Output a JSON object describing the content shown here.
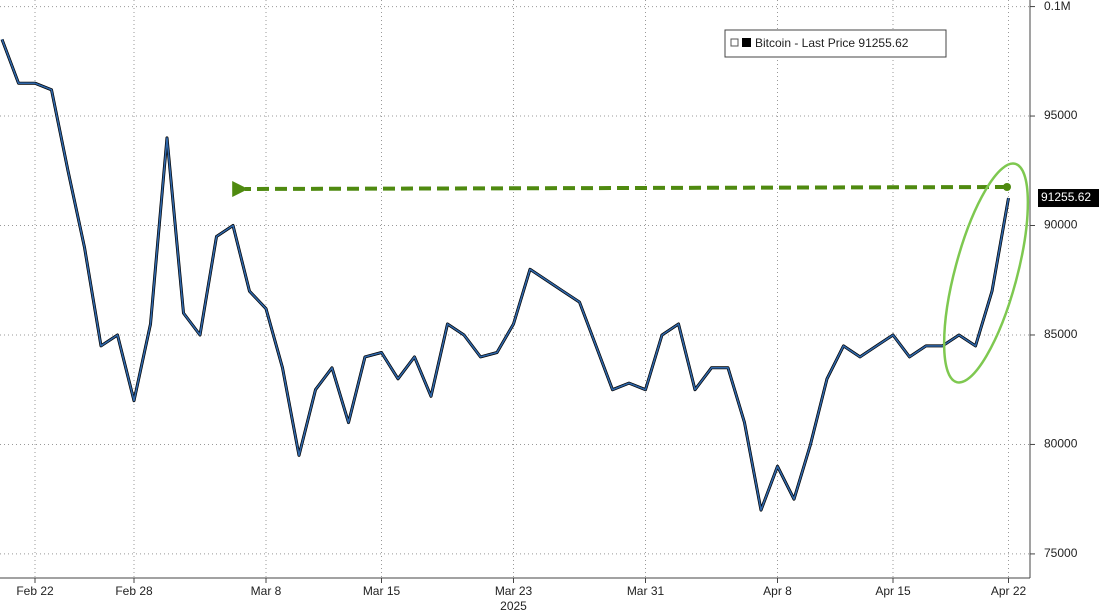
{
  "chart_data": {
    "type": "line",
    "x_axis_year": "2025",
    "x": [
      "2025-02-20",
      "2025-02-21",
      "2025-02-22",
      "2025-02-23",
      "2025-02-24",
      "2025-02-25",
      "2025-02-26",
      "2025-02-27",
      "2025-02-28",
      "2025-03-01",
      "2025-03-02",
      "2025-03-03",
      "2025-03-04",
      "2025-03-05",
      "2025-03-06",
      "2025-03-07",
      "2025-03-08",
      "2025-03-09",
      "2025-03-10",
      "2025-03-11",
      "2025-03-12",
      "2025-03-13",
      "2025-03-14",
      "2025-03-15",
      "2025-03-16",
      "2025-03-17",
      "2025-03-18",
      "2025-03-19",
      "2025-03-20",
      "2025-03-21",
      "2025-03-22",
      "2025-03-23",
      "2025-03-24",
      "2025-03-25",
      "2025-03-26",
      "2025-03-27",
      "2025-03-28",
      "2025-03-29",
      "2025-03-30",
      "2025-03-31",
      "2025-04-01",
      "2025-04-02",
      "2025-04-03",
      "2025-04-04",
      "2025-04-05",
      "2025-04-06",
      "2025-04-07",
      "2025-04-08",
      "2025-04-09",
      "2025-04-10",
      "2025-04-11",
      "2025-04-12",
      "2025-04-13",
      "2025-04-14",
      "2025-04-15",
      "2025-04-16",
      "2025-04-17",
      "2025-04-18",
      "2025-04-19",
      "2025-04-20",
      "2025-04-21",
      "2025-04-22"
    ],
    "series": [
      {
        "name": "Bitcoin - Last Price",
        "color": "#2f66a8",
        "values": [
          98500,
          96500,
          96500,
          96200,
          92500,
          89000,
          84500,
          85000,
          82000,
          85500,
          94000,
          86000,
          85000,
          89500,
          90000,
          87000,
          86200,
          83500,
          79500,
          82500,
          83500,
          81000,
          84000,
          84200,
          83000,
          84000,
          82200,
          85500,
          85000,
          84000,
          84200,
          85500,
          88000,
          87500,
          87000,
          86500,
          84500,
          82500,
          82800,
          82500,
          85000,
          85500,
          82500,
          83500,
          83500,
          81000,
          77000,
          79000,
          77500,
          80000,
          83000,
          84500,
          84000,
          84500,
          85000,
          84000,
          84500,
          84500,
          85000,
          84500,
          87000,
          91255.62
        ]
      }
    ],
    "xlim": [
      "2025-02-20",
      "2025-04-23"
    ],
    "xticks": [
      {
        "value": "2025-02-22",
        "label": "Feb 22"
      },
      {
        "value": "2025-02-28",
        "label": "Feb 28"
      },
      {
        "value": "2025-03-08",
        "label": "Mar 8"
      },
      {
        "value": "2025-03-15",
        "label": "Mar 15"
      },
      {
        "value": "2025-03-23",
        "label": "Mar 23"
      },
      {
        "value": "2025-03-31",
        "label": "Mar 31"
      },
      {
        "value": "2025-04-08",
        "label": "Apr 8"
      },
      {
        "value": "2025-04-15",
        "label": "Apr 15"
      },
      {
        "value": "2025-04-22",
        "label": "Apr 22"
      }
    ],
    "ylim": [
      73900,
      100300
    ],
    "yticks": [
      75000,
      80000,
      85000,
      90000,
      95000,
      {
        "value": 100000,
        "label": "0.1M"
      }
    ],
    "grid": true
  }
}
